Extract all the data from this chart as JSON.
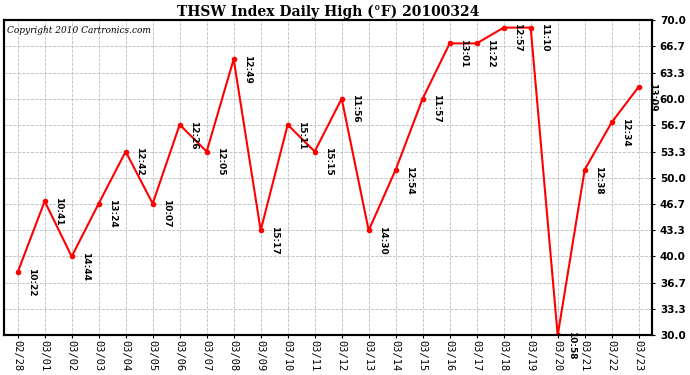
{
  "title": "THSW Index Daily High (°F) 20100324",
  "copyright": "Copyright 2010 Cartronics.com",
  "x_labels": [
    "02/28",
    "03/01",
    "03/02",
    "03/03",
    "03/04",
    "03/05",
    "03/06",
    "03/07",
    "03/08",
    "03/09",
    "03/10",
    "03/11",
    "03/12",
    "03/13",
    "03/14",
    "03/15",
    "03/16",
    "03/17",
    "03/18",
    "03/19",
    "03/20",
    "03/21",
    "03/22",
    "03/23"
  ],
  "y_values": [
    38.0,
    47.0,
    40.0,
    46.7,
    53.3,
    46.7,
    56.7,
    53.3,
    65.0,
    43.3,
    56.7,
    53.3,
    60.0,
    43.3,
    51.0,
    60.0,
    67.0,
    67.0,
    69.0,
    69.0,
    30.0,
    51.0,
    57.0,
    61.5
  ],
  "point_labels": [
    "10:22",
    "10:41",
    "14:44",
    "13:24",
    "12:42",
    "10:07",
    "12:26",
    "12:05",
    "12:49",
    "15:17",
    "15:11",
    "15:15",
    "11:56",
    "14:30",
    "12:54",
    "11:57",
    "13:01",
    "11:22",
    "12:57",
    "11:10",
    "10:58",
    "12:38",
    "12:34",
    "13:09"
  ],
  "ylim": [
    30.0,
    70.0
  ],
  "yticks": [
    30.0,
    33.3,
    36.7,
    40.0,
    43.3,
    46.7,
    50.0,
    53.3,
    56.7,
    60.0,
    63.3,
    66.7,
    70.0
  ],
  "line_color": "red",
  "marker_color": "red",
  "bg_color": "#ffffff",
  "plot_bg_color": "#ffffff",
  "grid_color": "#bbbbbb",
  "label_color": "#000000",
  "title_fontsize": 10,
  "label_fontsize": 6.5,
  "tick_fontsize": 7.5,
  "copyright_fontsize": 6.5
}
